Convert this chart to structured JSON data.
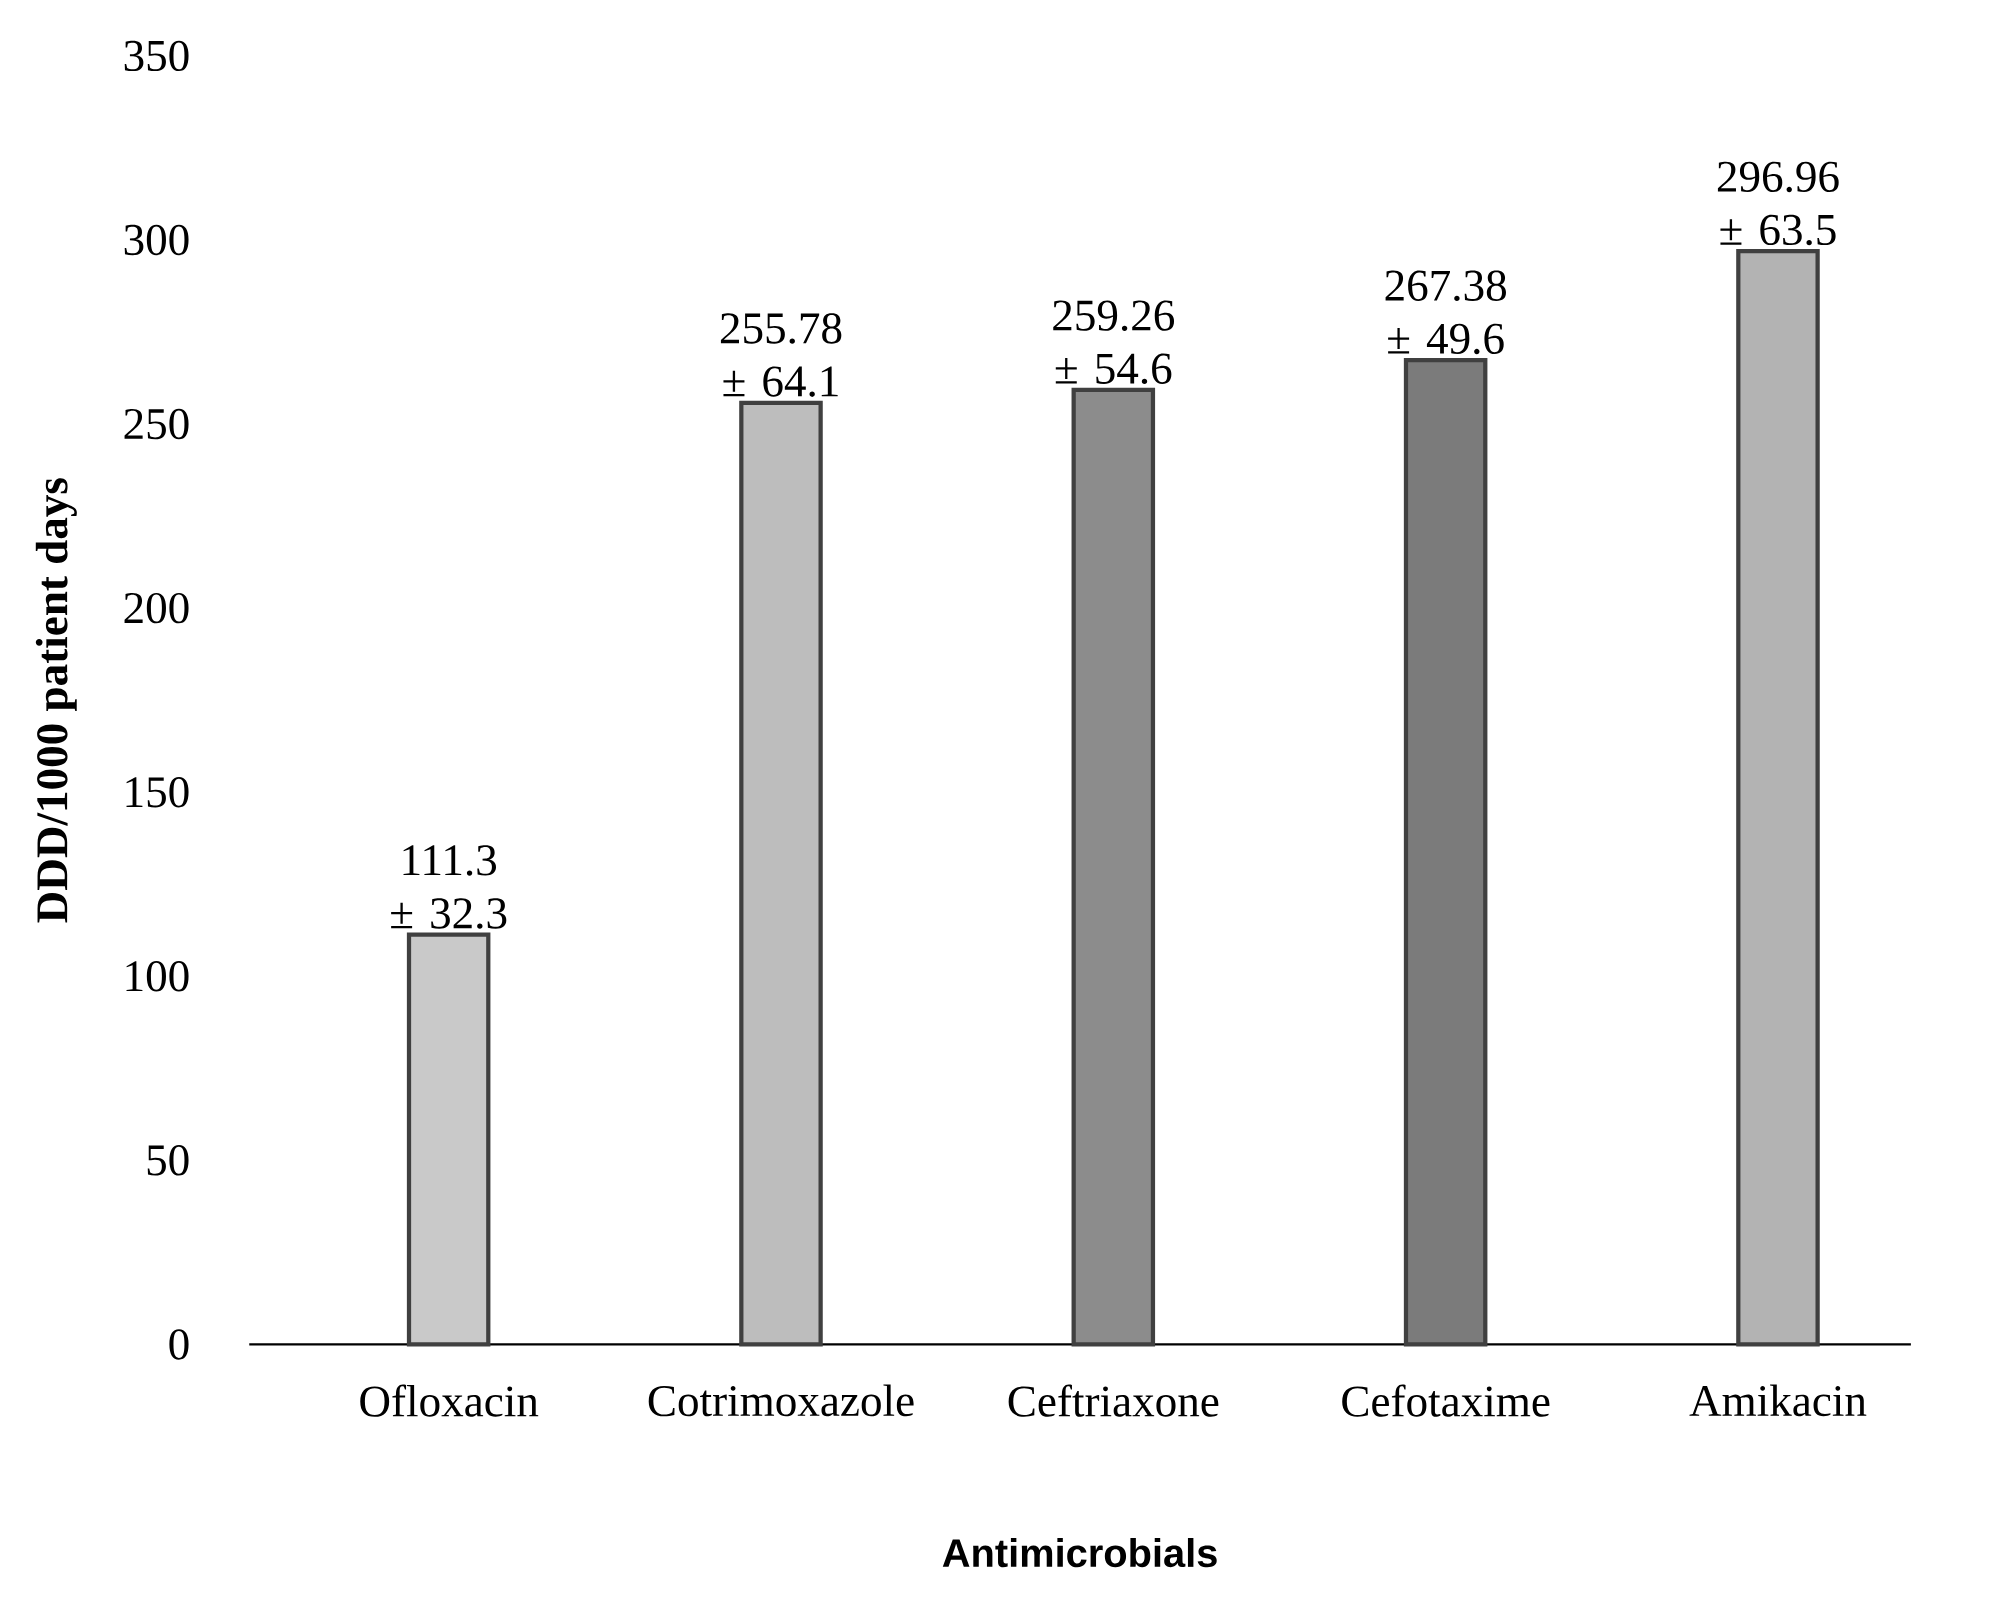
{
  "chart_data": {
    "type": "bar",
    "xlabel": "Antimicrobials",
    "ylabel": "DDD/1000 patient days",
    "categories": [
      "Ofloxacin",
      "Cotrimoxazole",
      "Ceftriaxone",
      "Cefotaxime",
      "Amikacin"
    ],
    "values": [
      111.3,
      255.78,
      259.26,
      267.38,
      296.96
    ],
    "colors": [
      "#c9c9c9",
      "#bdbdbd",
      "#8c8c8c",
      "#7b7b7b",
      "#b3b3b3"
    ],
    "value_labels": [
      "111.3 ± 32.3",
      "255.78 ± 64.1",
      "259.26 ± 54.6",
      "267.38 ± 49.6",
      "296.96 ± 63.5"
    ],
    "ylim": [
      0,
      350
    ],
    "yticks": [
      0,
      50,
      100,
      150,
      200,
      250,
      300,
      350
    ]
  }
}
